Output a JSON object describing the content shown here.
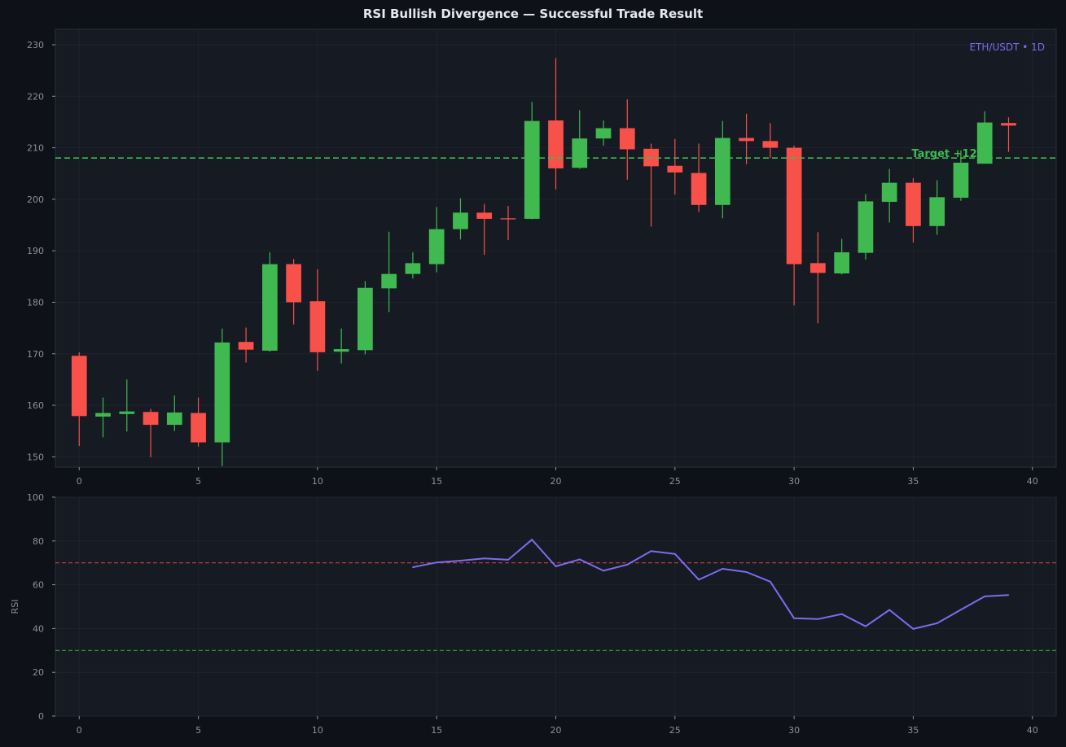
{
  "title": "RSI Bullish Divergence — Successful Trade Result",
  "colors": {
    "background": "#0e1118",
    "panel": "#161a22",
    "grid": "#1f242d",
    "axis": "#2a2f39",
    "tick_text": "#8b909a",
    "up": "#3fb950",
    "down": "#f85149",
    "rsi_line": "#7c6cf0",
    "overbought": "#c94141",
    "oversold": "#2f9a43",
    "target": "#3fb950",
    "badge": "#7c6cf0"
  },
  "chart_data": [
    {
      "type": "candlestick",
      "badge": "ETH/USDT • 1D",
      "xlim": [
        -1,
        41
      ],
      "ylim": [
        148,
        233
      ],
      "xticks": [
        0,
        5,
        10,
        15,
        20,
        25,
        30,
        35,
        40
      ],
      "yticks": [
        150,
        160,
        170,
        180,
        190,
        200,
        210,
        220,
        230
      ],
      "grid": true,
      "target_line": {
        "value": 208,
        "label": "Target +12%",
        "label_x": 35
      },
      "candles": [
        {
          "x": 0,
          "o": 169.6,
          "h": 170.3,
          "l": 152.1,
          "c": 157.9
        },
        {
          "x": 1,
          "o": 157.8,
          "h": 161.5,
          "l": 153.8,
          "c": 158.5
        },
        {
          "x": 2,
          "o": 158.3,
          "h": 165.0,
          "l": 154.9,
          "c": 158.8
        },
        {
          "x": 3,
          "o": 158.7,
          "h": 159.3,
          "l": 149.9,
          "c": 156.2
        },
        {
          "x": 4,
          "o": 156.2,
          "h": 161.9,
          "l": 155.0,
          "c": 158.6
        },
        {
          "x": 5,
          "o": 158.5,
          "h": 161.5,
          "l": 152.0,
          "c": 152.8
        },
        {
          "x": 6,
          "o": 152.8,
          "h": 174.9,
          "l": 148.2,
          "c": 172.2
        },
        {
          "x": 7,
          "o": 172.3,
          "h": 175.1,
          "l": 168.3,
          "c": 170.8
        },
        {
          "x": 8,
          "o": 170.6,
          "h": 189.7,
          "l": 170.4,
          "c": 187.4
        },
        {
          "x": 9,
          "o": 187.4,
          "h": 188.4,
          "l": 175.7,
          "c": 180.0
        },
        {
          "x": 10,
          "o": 180.2,
          "h": 186.4,
          "l": 166.7,
          "c": 170.3
        },
        {
          "x": 11,
          "o": 170.4,
          "h": 174.9,
          "l": 168.1,
          "c": 170.9
        },
        {
          "x": 12,
          "o": 170.7,
          "h": 184.1,
          "l": 169.9,
          "c": 182.8
        },
        {
          "x": 13,
          "o": 182.7,
          "h": 193.7,
          "l": 178.1,
          "c": 185.5
        },
        {
          "x": 14,
          "o": 185.5,
          "h": 189.7,
          "l": 184.6,
          "c": 187.6
        },
        {
          "x": 15,
          "o": 187.4,
          "h": 198.5,
          "l": 185.8,
          "c": 194.2
        },
        {
          "x": 16,
          "o": 194.2,
          "h": 200.2,
          "l": 192.2,
          "c": 197.4
        },
        {
          "x": 17,
          "o": 197.4,
          "h": 199.1,
          "l": 189.2,
          "c": 196.2
        },
        {
          "x": 18,
          "o": 196.3,
          "h": 198.7,
          "l": 192.1,
          "c": 196.1
        },
        {
          "x": 19,
          "o": 196.2,
          "h": 218.9,
          "l": 196.1,
          "c": 215.2
        },
        {
          "x": 20,
          "o": 215.3,
          "h": 227.4,
          "l": 201.9,
          "c": 206.0
        },
        {
          "x": 21,
          "o": 206.1,
          "h": 217.3,
          "l": 205.9,
          "c": 211.8
        },
        {
          "x": 22,
          "o": 211.8,
          "h": 215.3,
          "l": 210.4,
          "c": 213.8
        },
        {
          "x": 23,
          "o": 213.8,
          "h": 219.4,
          "l": 203.8,
          "c": 209.7
        },
        {
          "x": 24,
          "o": 209.8,
          "h": 210.8,
          "l": 194.7,
          "c": 206.4
        },
        {
          "x": 25,
          "o": 206.5,
          "h": 211.7,
          "l": 200.9,
          "c": 205.2
        },
        {
          "x": 26,
          "o": 205.1,
          "h": 210.8,
          "l": 197.5,
          "c": 198.9
        },
        {
          "x": 27,
          "o": 198.9,
          "h": 215.2,
          "l": 196.3,
          "c": 211.9
        },
        {
          "x": 28,
          "o": 211.9,
          "h": 216.6,
          "l": 206.8,
          "c": 211.3
        },
        {
          "x": 29,
          "o": 211.3,
          "h": 214.8,
          "l": 208.0,
          "c": 210.0
        },
        {
          "x": 30,
          "o": 210.0,
          "h": 210.4,
          "l": 179.4,
          "c": 187.4
        },
        {
          "x": 31,
          "o": 187.6,
          "h": 193.6,
          "l": 175.9,
          "c": 185.7
        },
        {
          "x": 32,
          "o": 185.6,
          "h": 192.3,
          "l": 185.4,
          "c": 189.7
        },
        {
          "x": 33,
          "o": 189.6,
          "h": 201.0,
          "l": 188.3,
          "c": 199.6
        },
        {
          "x": 34,
          "o": 199.5,
          "h": 205.9,
          "l": 195.5,
          "c": 203.2
        },
        {
          "x": 35,
          "o": 203.2,
          "h": 204.1,
          "l": 191.6,
          "c": 194.8
        },
        {
          "x": 36,
          "o": 194.8,
          "h": 203.7,
          "l": 193.1,
          "c": 200.4
        },
        {
          "x": 37,
          "o": 200.3,
          "h": 209.5,
          "l": 199.7,
          "c": 207.1
        },
        {
          "x": 38,
          "o": 206.9,
          "h": 217.1,
          "l": 206.9,
          "c": 214.9
        },
        {
          "x": 39,
          "o": 214.8,
          "h": 215.9,
          "l": 209.2,
          "c": 214.3
        }
      ]
    },
    {
      "type": "line",
      "ylabel": "RSI",
      "xlim": [
        -1,
        41
      ],
      "ylim": [
        0,
        100
      ],
      "xticks": [
        0,
        5,
        10,
        15,
        20,
        25,
        30,
        35,
        40
      ],
      "yticks": [
        0,
        20,
        40,
        60,
        80,
        100
      ],
      "grid": true,
      "reference_lines": [
        {
          "value": 70,
          "kind": "overbought"
        },
        {
          "value": 30,
          "kind": "oversold"
        }
      ],
      "x": [
        14,
        15,
        16,
        17,
        18,
        19,
        20,
        21,
        22,
        23,
        24,
        25,
        26,
        27,
        28,
        29,
        30,
        31,
        32,
        33,
        34,
        35,
        36,
        37,
        38,
        39
      ],
      "values": [
        68.0,
        70.2,
        71.0,
        72.0,
        71.4,
        80.6,
        68.4,
        71.6,
        66.4,
        69.2,
        75.4,
        74.1,
        62.3,
        67.3,
        65.8,
        61.4,
        44.7,
        44.3,
        46.6,
        41.0,
        48.5,
        39.8,
        42.4,
        48.6,
        54.7,
        55.3
      ]
    }
  ]
}
